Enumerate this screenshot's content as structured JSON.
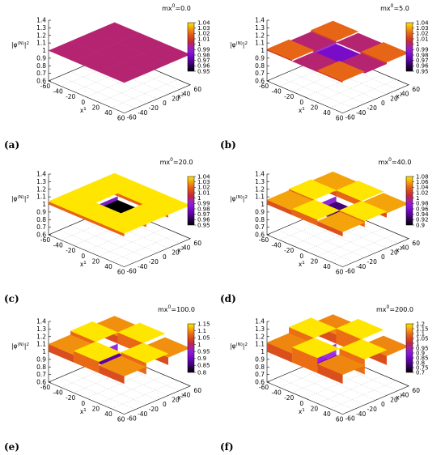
{
  "chart_data": [
    {
      "type": "surface3d",
      "panel_label": "(a)",
      "title_base": "mx",
      "title_sup": "0",
      "title_value": "=0.0",
      "zlabel_base": "|φ",
      "zlabel_sup": "(N)",
      "zlabel_tail": "|",
      "zlabel_sq": "2",
      "x1_label_base": "x",
      "x1_label_sup": "1",
      "x2_label_base": "x",
      "x2_label_sup": "2",
      "x1_ticks": [
        "-60",
        "-40",
        "-20",
        "0",
        "20",
        "40",
        "60"
      ],
      "x2_ticks": [
        "-60",
        "-40",
        "-20",
        "0",
        "20",
        "40",
        "60"
      ],
      "z_ticks": [
        "0.6",
        "0.7",
        "0.8",
        "0.9",
        "1",
        "1.1",
        "1.2",
        "1.3",
        "1.4"
      ],
      "zlim": [
        0.6,
        1.4
      ],
      "colorbar_ticks": [
        "1.04",
        "1.03",
        "1.02",
        "1.01",
        "1",
        "0.99",
        "0.98",
        "0.97",
        "0.96",
        "0.95"
      ],
      "colorbar_range": [
        0.95,
        1.04
      ],
      "center_value": 1.0,
      "edge_value": 1.0,
      "corner_value": 1.0
    },
    {
      "type": "surface3d",
      "panel_label": "(b)",
      "title_base": "mx",
      "title_sup": "0",
      "title_value": "=5.0",
      "zlabel_base": "|φ",
      "zlabel_sup": "(N)",
      "zlabel_tail": "|",
      "zlabel_sq": "2",
      "x1_label_base": "x",
      "x1_label_sup": "1",
      "x2_label_base": "x",
      "x2_label_sup": "2",
      "x1_ticks": [
        "-60",
        "-40",
        "-20",
        "0",
        "20",
        "40",
        "60"
      ],
      "x2_ticks": [
        "-60",
        "-40",
        "-20",
        "0",
        "20",
        "40",
        "60"
      ],
      "z_ticks": [
        "0.6",
        "0.7",
        "0.8",
        "0.9",
        "1",
        "1.1",
        "1.2",
        "1.3",
        "1.4"
      ],
      "zlim": [
        0.6,
        1.4
      ],
      "colorbar_ticks": [
        "1.04",
        "1.03",
        "1.02",
        "1.01",
        "1",
        "0.99",
        "0.98",
        "0.97",
        "0.96",
        "0.95"
      ],
      "colorbar_range": [
        0.95,
        1.04
      ],
      "center_value": 0.98,
      "edge_value": 1.0,
      "corner_value": 1.02
    },
    {
      "type": "surface3d",
      "panel_label": "(c)",
      "title_base": "mx",
      "title_sup": "0",
      "title_value": "=20.0",
      "zlabel_base": "|φ",
      "zlabel_sup": "(N)",
      "zlabel_tail": "|",
      "zlabel_sq": "2",
      "x1_label_base": "x",
      "x1_label_sup": "1",
      "x2_label_base": "x",
      "x2_label_sup": "2",
      "x1_ticks": [
        "-60",
        "-40",
        "-20",
        "0",
        "20",
        "40",
        "60"
      ],
      "x2_ticks": [
        "-60",
        "-40",
        "-20",
        "0",
        "20",
        "40",
        "60"
      ],
      "z_ticks": [
        "0.6",
        "0.7",
        "0.8",
        "0.9",
        "1",
        "1.1",
        "1.2",
        "1.3",
        "1.4"
      ],
      "zlim": [
        0.6,
        1.4
      ],
      "colorbar_ticks": [
        "1.04",
        "1.03",
        "1.02",
        "1.01",
        "1",
        "0.99",
        "0.98",
        "0.97",
        "0.96",
        "0.95"
      ],
      "colorbar_range": [
        0.95,
        1.04
      ],
      "center_value": 0.95,
      "edge_value": 1.04,
      "corner_value": 1.04
    },
    {
      "type": "surface3d",
      "panel_label": "(d)",
      "title_base": "mx",
      "title_sup": "0",
      "title_value": "=40.0",
      "zlabel_base": "|φ",
      "zlabel_sup": "(N)",
      "zlabel_tail": "|",
      "zlabel_sq": "2",
      "x1_label_base": "x",
      "x1_label_sup": "1",
      "x2_label_base": "x",
      "x2_label_sup": "2",
      "x1_ticks": [
        "-60",
        "-40",
        "-20",
        "0",
        "20",
        "40",
        "60"
      ],
      "x2_ticks": [
        "-60",
        "-40",
        "-20",
        "0",
        "20",
        "40",
        "60"
      ],
      "z_ticks": [
        "0.6",
        "0.7",
        "0.8",
        "0.9",
        "1",
        "1.1",
        "1.2",
        "1.3",
        "1.4"
      ],
      "zlim": [
        0.6,
        1.4
      ],
      "colorbar_ticks": [
        "1.08",
        "1.06",
        "1.04",
        "1.02",
        "1",
        "0.98",
        "0.96",
        "0.94",
        "0.92",
        "0.9"
      ],
      "colorbar_range": [
        0.9,
        1.08
      ],
      "center_value": 0.93,
      "edge_value": 1.08,
      "corner_value": 1.06
    },
    {
      "type": "surface3d",
      "panel_label": "(e)",
      "title_base": "mx",
      "title_sup": "0",
      "title_value": "=100.0",
      "zlabel_base": "|φ",
      "zlabel_sup": "(N)",
      "zlabel_tail": "|",
      "zlabel_sq": "2",
      "x1_label_base": "x",
      "x1_label_sup": "1",
      "x2_label_base": "x",
      "x2_label_sup": "2",
      "x1_ticks": [
        "-60",
        "-40",
        "-20",
        "0",
        "20",
        "40",
        "60"
      ],
      "x2_ticks": [
        "-60",
        "-40",
        "-20",
        "0",
        "20",
        "40",
        "60"
      ],
      "z_ticks": [
        "0.6",
        "0.7",
        "0.8",
        "0.9",
        "1",
        "1.1",
        "1.2",
        "1.3",
        "1.4"
      ],
      "zlim": [
        0.6,
        1.4
      ],
      "colorbar_ticks": [
        "1.15",
        "1.1",
        "1.05",
        "1",
        "0.95",
        "0.9",
        "0.85",
        "0.8"
      ],
      "colorbar_range": [
        0.8,
        1.15
      ],
      "center_value": 0.88,
      "edge_value": 1.15,
      "corner_value": 1.1
    },
    {
      "type": "surface3d",
      "panel_label": "(f)",
      "title_base": "mx",
      "title_sup": "0",
      "title_value": "=200.0",
      "zlabel_base": "|φ",
      "zlabel_sup": "(N)",
      "zlabel_tail": "|",
      "zlabel_sq": "2",
      "x1_label_base": "x",
      "x1_label_sup": "1",
      "x2_label_base": "x",
      "x2_label_sup": "2",
      "x1_ticks": [
        "-60",
        "-40",
        "-20",
        "0",
        "20",
        "40",
        "60"
      ],
      "x2_ticks": [
        "-60",
        "-40",
        "-20",
        "0",
        "20",
        "40",
        "60"
      ],
      "z_ticks": [
        "0.6",
        "0.7",
        "0.8",
        "0.9",
        "1",
        "1.1",
        "1.2",
        "1.3",
        "1.4"
      ],
      "zlim": [
        0.6,
        1.4
      ],
      "colorbar_ticks": [
        "1.2",
        "1.15",
        "1.1",
        "1.05",
        "1",
        "0.95",
        "0.9",
        "0.85",
        "0.8",
        "0.75",
        "0.7"
      ],
      "colorbar_range": [
        0.7,
        1.2
      ],
      "center_value": 0.85,
      "edge_value": 1.2,
      "corner_value": 1.12
    }
  ]
}
